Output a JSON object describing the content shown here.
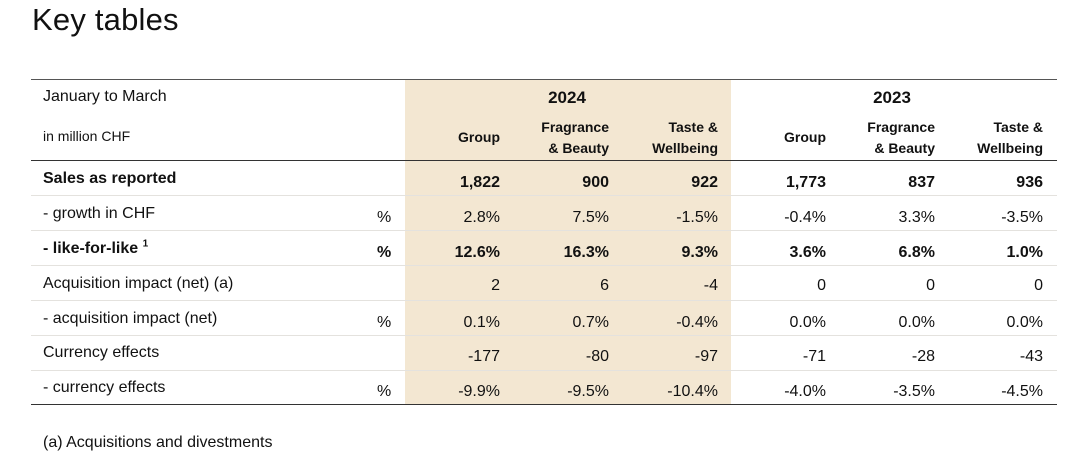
{
  "title": "Key tables",
  "header": {
    "period": "January to March",
    "unit": "in million CHF",
    "year_2024": "2024",
    "year_2023": "2023",
    "col_group": "Group",
    "col_fragrance_1": "Fragrance",
    "col_fragrance_2": "& Beauty",
    "col_taste_1": "Taste &",
    "col_taste_2": "Wellbeing"
  },
  "rows": [
    {
      "label": "Sales as reported",
      "sup": "",
      "unit": "",
      "values": [
        "1,822",
        "900",
        "922",
        "1,773",
        "837",
        "936"
      ]
    },
    {
      "label": "- growth in CHF",
      "sup": "",
      "unit": "%",
      "values": [
        "2.8%",
        "7.5%",
        "-1.5%",
        "-0.4%",
        "3.3%",
        "-3.5%"
      ]
    },
    {
      "label": "- like-for-like",
      "sup": "1",
      "unit": "%",
      "values": [
        "12.6%",
        "16.3%",
        "9.3%",
        "3.6%",
        "6.8%",
        "1.0%"
      ]
    },
    {
      "label": "Acquisition impact (net) (a)",
      "sup": "",
      "unit": "",
      "values": [
        "2",
        "6",
        "-4",
        "0",
        "0",
        "0"
      ]
    },
    {
      "label": "- acquisition impact (net)",
      "sup": "",
      "unit": "%",
      "values": [
        "0.1%",
        "0.7%",
        "-0.4%",
        "0.0%",
        "0.0%",
        "0.0%"
      ]
    },
    {
      "label": "Currency effects",
      "sup": "",
      "unit": "",
      "values": [
        "-177",
        "-80",
        "-97",
        "-71",
        "-28",
        "-43"
      ]
    },
    {
      "label": "- currency effects",
      "sup": "",
      "unit": "%",
      "values": [
        "-9.9%",
        "-9.5%",
        "-10.4%",
        "-4.0%",
        "-3.5%",
        "-4.5%"
      ]
    }
  ],
  "footnote": "(a) Acquisitions and divestments"
}
